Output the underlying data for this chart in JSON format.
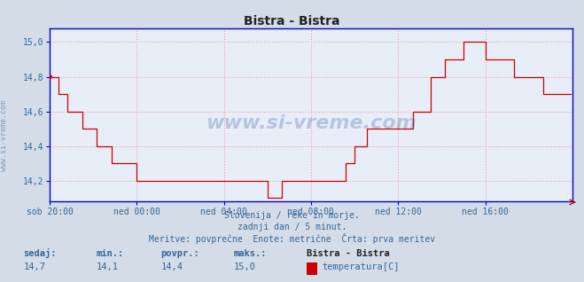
{
  "title": "Bistra - Bistra",
  "bg_color": "#d4dce8",
  "plot_bg_color": "#e8eef8",
  "line_color": "#cc0000",
  "grid_color": "#e8a0a0",
  "axis_color": "#0000cc",
  "text_color": "#336699",
  "title_color": "#333333",
  "ytick_labels": [
    "14,2",
    "14,4",
    "14,6",
    "14,8",
    "15,0"
  ],
  "ytick_vals": [
    14.2,
    14.4,
    14.6,
    14.8,
    15.0
  ],
  "xtick_labels": [
    "sob 20:00",
    "ned 00:00",
    "ned 04:00",
    "ned 08:00",
    "ned 12:00",
    "ned 16:00"
  ],
  "xtick_positions": [
    0,
    48,
    96,
    144,
    192,
    240
  ],
  "xlabel_text1": "Slovenija / reke in morje.",
  "xlabel_text2": "zadnji dan / 5 minut.",
  "xlabel_text3": "Meritve: povprečne  Enote: metrične  Črta: prva meritev",
  "watermark": "www.si-vreme.com",
  "legend_station": "Bistra - Bistra",
  "legend_var": "temperatura[C]",
  "stat_sedaj": "14,7",
  "stat_min": "14,1",
  "stat_povpr": "14,4",
  "stat_maks": "15,0",
  "total_points": 288,
  "segments": [
    {
      "s": 0,
      "e": 5,
      "v": 14.8
    },
    {
      "s": 5,
      "e": 10,
      "v": 14.7
    },
    {
      "s": 10,
      "e": 18,
      "v": 14.6
    },
    {
      "s": 18,
      "e": 26,
      "v": 14.5
    },
    {
      "s": 26,
      "e": 34,
      "v": 14.4
    },
    {
      "s": 34,
      "e": 42,
      "v": 14.3
    },
    {
      "s": 42,
      "e": 48,
      "v": 14.3
    },
    {
      "s": 48,
      "e": 58,
      "v": 14.2
    },
    {
      "s": 58,
      "e": 96,
      "v": 14.2
    },
    {
      "s": 96,
      "e": 120,
      "v": 14.2
    },
    {
      "s": 120,
      "e": 128,
      "v": 14.1
    },
    {
      "s": 128,
      "e": 138,
      "v": 14.2
    },
    {
      "s": 138,
      "e": 148,
      "v": 14.2
    },
    {
      "s": 148,
      "e": 158,
      "v": 14.2
    },
    {
      "s": 158,
      "e": 163,
      "v": 14.2
    },
    {
      "s": 163,
      "e": 168,
      "v": 14.3
    },
    {
      "s": 168,
      "e": 175,
      "v": 14.4
    },
    {
      "s": 175,
      "e": 181,
      "v": 14.5
    },
    {
      "s": 181,
      "e": 192,
      "v": 14.5
    },
    {
      "s": 192,
      "e": 200,
      "v": 14.5
    },
    {
      "s": 200,
      "e": 210,
      "v": 14.6
    },
    {
      "s": 210,
      "e": 218,
      "v": 14.8
    },
    {
      "s": 218,
      "e": 228,
      "v": 14.9
    },
    {
      "s": 228,
      "e": 240,
      "v": 15.0
    },
    {
      "s": 240,
      "e": 248,
      "v": 14.9
    },
    {
      "s": 248,
      "e": 256,
      "v": 14.9
    },
    {
      "s": 256,
      "e": 262,
      "v": 14.8
    },
    {
      "s": 262,
      "e": 272,
      "v": 14.8
    },
    {
      "s": 272,
      "e": 280,
      "v": 14.7
    },
    {
      "s": 280,
      "e": 288,
      "v": 14.7
    }
  ]
}
